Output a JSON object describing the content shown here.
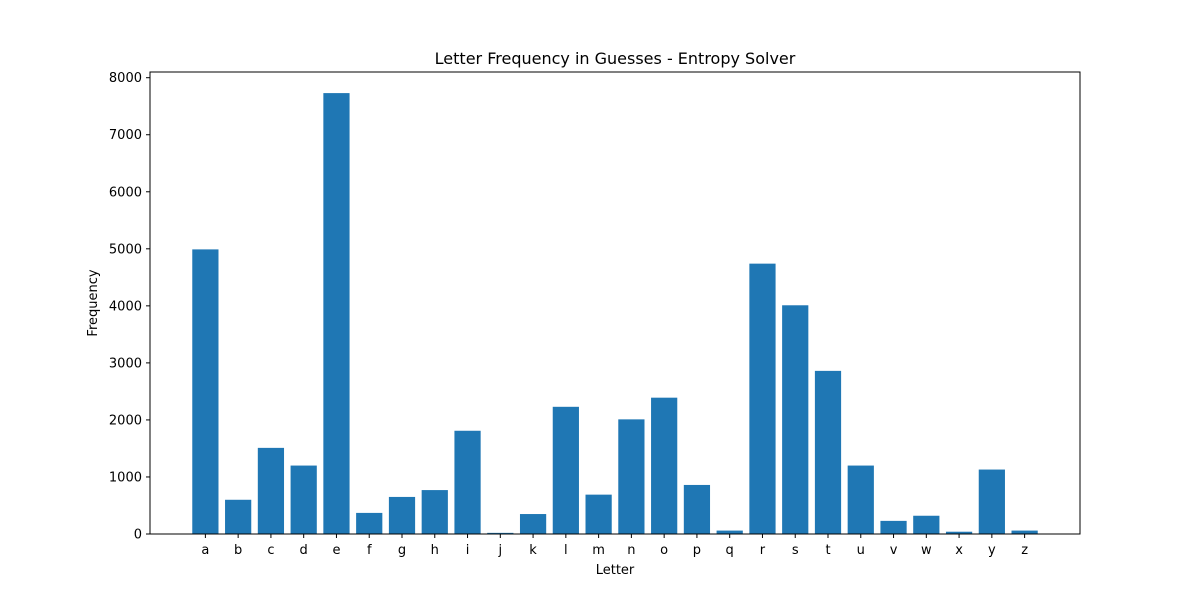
{
  "chart_data": {
    "type": "bar",
    "title": "Letter Frequency in Guesses - Entropy Solver",
    "xlabel": "Letter",
    "ylabel": "Frequency",
    "ylim": [
      0,
      8100
    ],
    "yticks": [
      0,
      1000,
      2000,
      3000,
      4000,
      5000,
      6000,
      7000,
      8000
    ],
    "categories": [
      "a",
      "b",
      "c",
      "d",
      "e",
      "f",
      "g",
      "h",
      "i",
      "j",
      "k",
      "l",
      "m",
      "n",
      "o",
      "p",
      "q",
      "r",
      "s",
      "t",
      "u",
      "v",
      "w",
      "x",
      "y",
      "z"
    ],
    "values": [
      4990,
      600,
      1510,
      1200,
      7730,
      370,
      650,
      770,
      1810,
      20,
      350,
      2230,
      690,
      2010,
      2390,
      860,
      60,
      4740,
      4010,
      2860,
      1200,
      230,
      320,
      40,
      1130,
      60
    ],
    "bar_color": "#1f77b4",
    "grid": false
  }
}
